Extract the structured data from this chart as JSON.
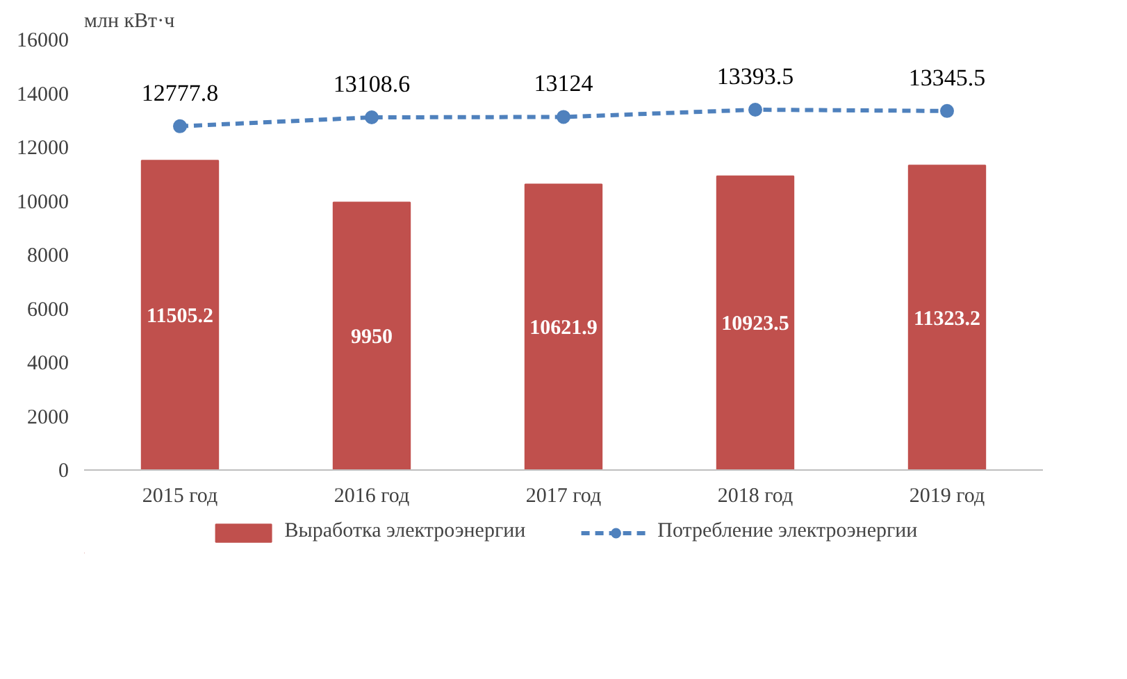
{
  "chart_data": {
    "type": "bar",
    "ylabel": "млн кВт·ч",
    "categories": [
      "2015 год",
      "2016 год",
      "2017 год",
      "2018 год",
      "2019 год"
    ],
    "series": [
      {
        "name": "Выработка электроэнергии",
        "color": "#c0504d",
        "values": [
          11505.2,
          9950,
          10621.9,
          10923.5,
          11323.2
        ]
      },
      {
        "name": "Потребление электроэнергии",
        "type": "line",
        "color": "#4f81bd",
        "marker": "circle",
        "line_style": "dashed",
        "values": [
          12777.8,
          13108.6,
          13124,
          13393.5,
          13345.5
        ]
      }
    ],
    "ylim": [
      0,
      16000
    ],
    "yticks": [
      0,
      2000,
      4000,
      6000,
      8000,
      10000,
      12000,
      14000,
      16000
    ],
    "grid": false,
    "legend": "bottom",
    "data_labels": true
  }
}
